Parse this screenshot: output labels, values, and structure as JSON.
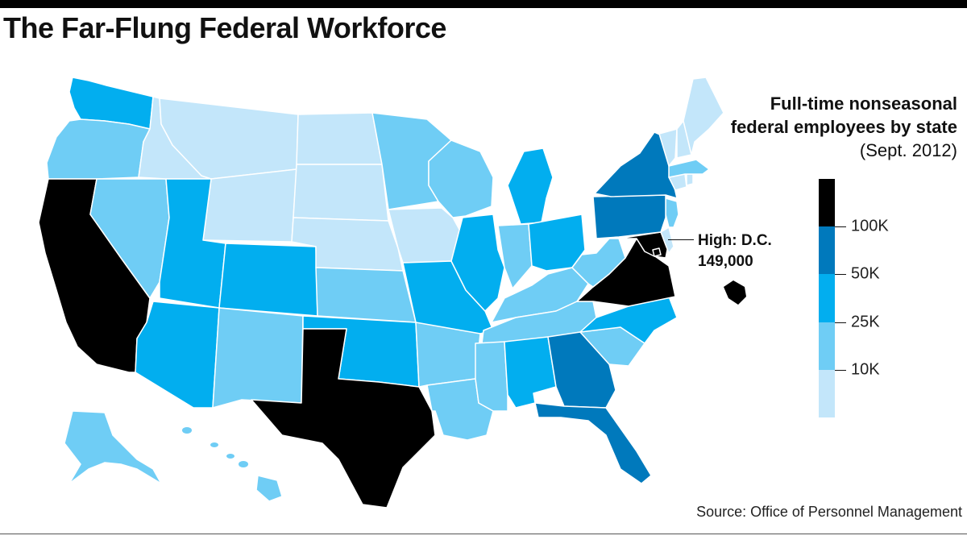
{
  "header": {
    "title": "The Far-Flung Federal Workforce"
  },
  "legend": {
    "title_bold": "Full-time nonseasonal federal employees by state",
    "title_light": "(Sept. 2012)",
    "bins": [
      {
        "range": "under 10K",
        "color": "#c3e6fa"
      },
      {
        "range": "10K–25K",
        "color": "#6fcdf5"
      },
      {
        "range": "25K–50K",
        "color": "#02aeef"
      },
      {
        "range": "50K–100K",
        "color": "#0079bc"
      },
      {
        "range": "over 100K",
        "color": "#000000"
      }
    ],
    "tick_labels": [
      "10K",
      "25K",
      "50K",
      "100K"
    ]
  },
  "callout": {
    "line1": "High: D.C.",
    "line2": "149,000"
  },
  "footer": {
    "source": "Source: Office of Personnel Management"
  },
  "map": {
    "projection": "Albers USA",
    "states": [
      {
        "state": "Washington",
        "bin": "25K–50K"
      },
      {
        "state": "Oregon",
        "bin": "10K–25K"
      },
      {
        "state": "California",
        "bin": "over 100K"
      },
      {
        "state": "Nevada",
        "bin": "10K–25K"
      },
      {
        "state": "Idaho",
        "bin": "under 10K"
      },
      {
        "state": "Montana",
        "bin": "under 10K"
      },
      {
        "state": "Wyoming",
        "bin": "under 10K"
      },
      {
        "state": "Utah",
        "bin": "25K–50K"
      },
      {
        "state": "Colorado",
        "bin": "25K–50K"
      },
      {
        "state": "Arizona",
        "bin": "25K–50K"
      },
      {
        "state": "New Mexico",
        "bin": "10K–25K"
      },
      {
        "state": "North Dakota",
        "bin": "under 10K"
      },
      {
        "state": "South Dakota",
        "bin": "under 10K"
      },
      {
        "state": "Nebraska",
        "bin": "under 10K"
      },
      {
        "state": "Kansas",
        "bin": "10K–25K"
      },
      {
        "state": "Oklahoma",
        "bin": "25K–50K"
      },
      {
        "state": "Texas",
        "bin": "over 100K"
      },
      {
        "state": "Minnesota",
        "bin": "10K–25K"
      },
      {
        "state": "Iowa",
        "bin": "under 10K"
      },
      {
        "state": "Missouri",
        "bin": "25K–50K"
      },
      {
        "state": "Arkansas",
        "bin": "10K–25K"
      },
      {
        "state": "Louisiana",
        "bin": "10K–25K"
      },
      {
        "state": "Wisconsin",
        "bin": "10K–25K"
      },
      {
        "state": "Illinois",
        "bin": "25K–50K"
      },
      {
        "state": "Michigan",
        "bin": "25K–50K"
      },
      {
        "state": "Indiana",
        "bin": "10K–25K"
      },
      {
        "state": "Ohio",
        "bin": "25K–50K"
      },
      {
        "state": "Kentucky",
        "bin": "10K–25K"
      },
      {
        "state": "Tennessee",
        "bin": "10K–25K"
      },
      {
        "state": "Mississippi",
        "bin": "10K–25K"
      },
      {
        "state": "Alabama",
        "bin": "25K–50K"
      },
      {
        "state": "Georgia",
        "bin": "50K–100K"
      },
      {
        "state": "Florida",
        "bin": "50K–100K"
      },
      {
        "state": "South Carolina",
        "bin": "10K–25K"
      },
      {
        "state": "North Carolina",
        "bin": "25K–50K"
      },
      {
        "state": "Virginia",
        "bin": "over 100K"
      },
      {
        "state": "West Virginia",
        "bin": "10K–25K"
      },
      {
        "state": "Maryland",
        "bin": "over 100K"
      },
      {
        "state": "Delaware",
        "bin": "under 10K"
      },
      {
        "state": "New Jersey",
        "bin": "10K–25K"
      },
      {
        "state": "Pennsylvania",
        "bin": "50K–100K"
      },
      {
        "state": "New York",
        "bin": "50K–100K"
      },
      {
        "state": "Connecticut",
        "bin": "under 10K"
      },
      {
        "state": "Rhode Island",
        "bin": "under 10K"
      },
      {
        "state": "Massachusetts",
        "bin": "10K–25K"
      },
      {
        "state": "Vermont",
        "bin": "under 10K"
      },
      {
        "state": "New Hampshire",
        "bin": "under 10K"
      },
      {
        "state": "Maine",
        "bin": "under 10K"
      },
      {
        "state": "District of Columbia",
        "bin": "over 100K"
      },
      {
        "state": "Alaska",
        "bin": "10K–25K"
      },
      {
        "state": "Hawaii",
        "bin": "10K–25K"
      }
    ]
  }
}
